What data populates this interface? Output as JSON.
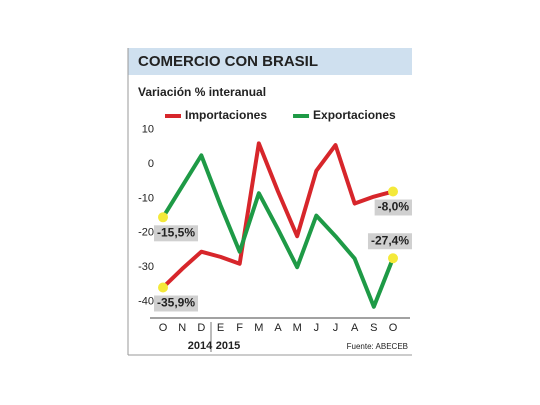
{
  "chart_data": {
    "type": "line",
    "title": "COMERCIO CON BRASIL",
    "subtitle": "Variación % interanual",
    "source": "Fuente: ABECEB",
    "categories": [
      "O",
      "N",
      "D",
      "E",
      "F",
      "M",
      "A",
      "M",
      "J",
      "J",
      "A",
      "S",
      "O"
    ],
    "years": [
      "2014",
      "2015"
    ],
    "series": [
      {
        "name": "Importaciones",
        "color": "#d7262b",
        "values": [
          -35.9,
          -30.5,
          -25.5,
          -27,
          -29,
          6,
          -8,
          -21,
          -2,
          5.5,
          -11.5,
          -9.5,
          -8.0
        ],
        "value_labels": [
          "-35,9%",
          null,
          null,
          null,
          null,
          null,
          null,
          null,
          null,
          null,
          null,
          null,
          "-8,0%"
        ]
      },
      {
        "name": "Exportaciones",
        "color": "#1e9a46",
        "values": [
          -15.5,
          -6.5,
          2.5,
          -12,
          -25.5,
          -8.5,
          -19,
          -30,
          -15,
          -21,
          -27.5,
          -41.5,
          -27.4
        ],
        "value_labels": [
          "-15,5%",
          null,
          null,
          null,
          null,
          null,
          null,
          null,
          null,
          null,
          null,
          null,
          "-27,4%"
        ]
      }
    ],
    "ylim": [
      -45,
      12
    ],
    "yticks": [
      10,
      0,
      -10,
      -20,
      -30,
      -40
    ],
    "grid": false
  }
}
